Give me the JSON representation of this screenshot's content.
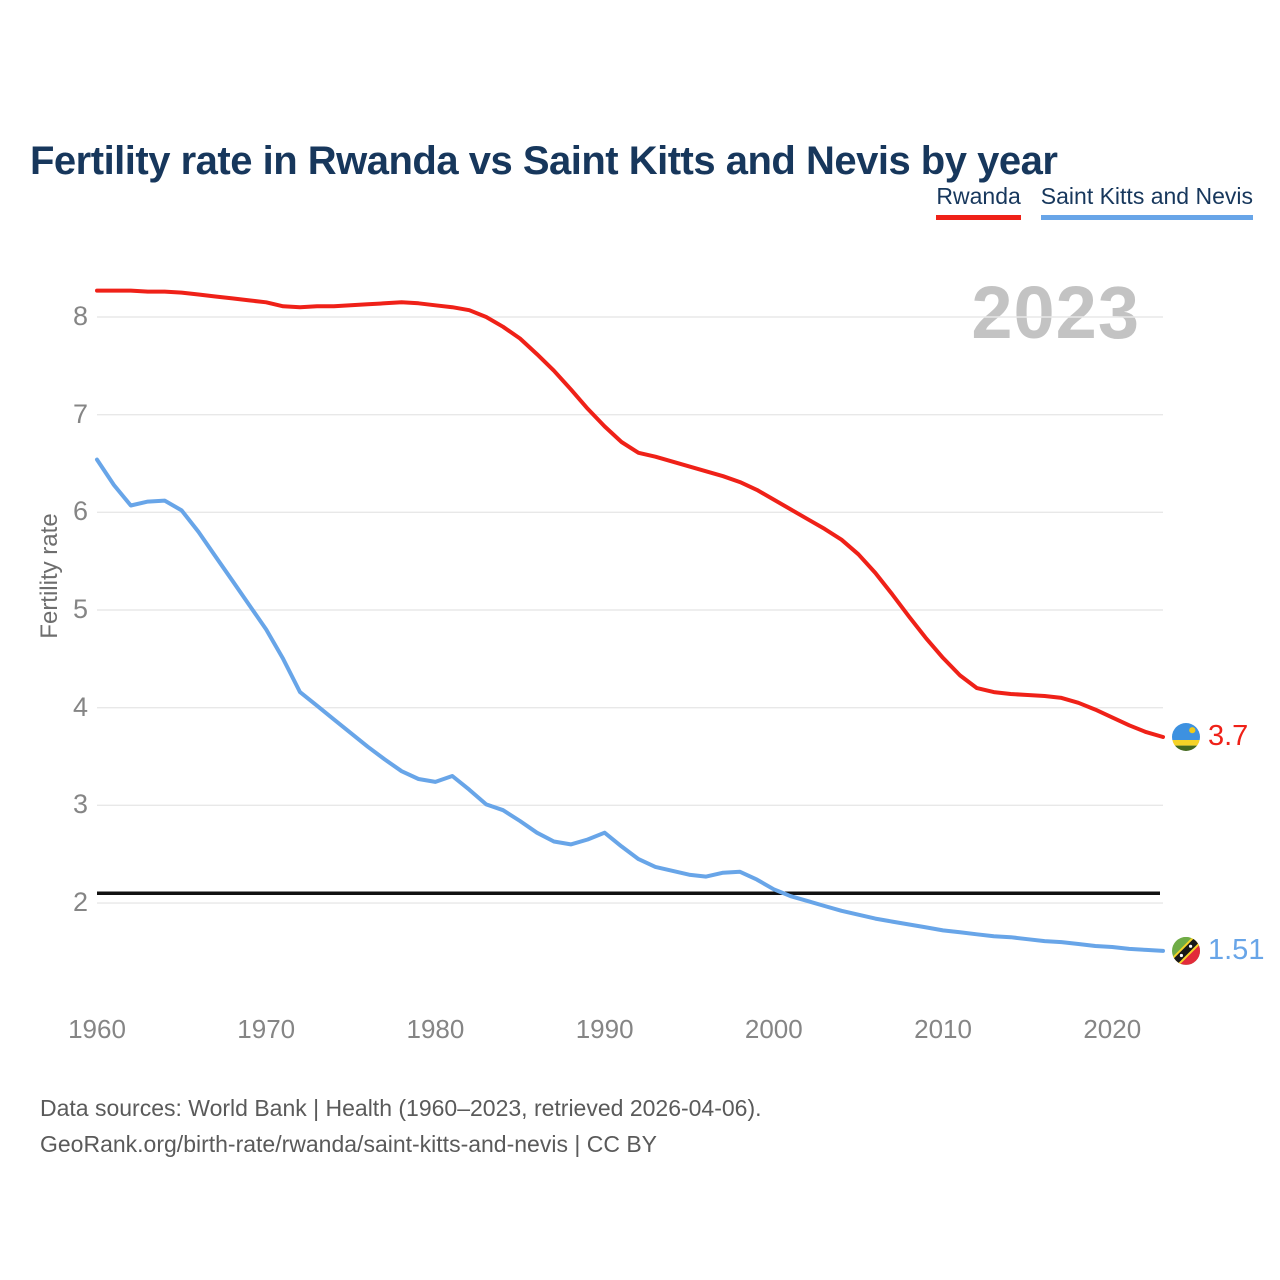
{
  "title": "Fertility rate in Rwanda vs Saint Kitts and Nevis by year",
  "legend": [
    {
      "label": "Rwanda",
      "color": "#ef2118"
    },
    {
      "label": "Saint Kitts and Nevis",
      "color": "#68a5e8"
    }
  ],
  "watermark": "2023",
  "y_axis": {
    "label": "Fertility rate",
    "ticks": [
      8,
      7,
      6,
      5,
      4,
      3,
      2
    ]
  },
  "x_axis": {
    "ticks": [
      1960,
      1970,
      1980,
      1990,
      2000,
      2010,
      2020
    ]
  },
  "end_labels": [
    {
      "series": "Rwanda",
      "value": "3.7",
      "flag": "rwanda-flag"
    },
    {
      "series": "Saint Kitts and Nevis",
      "value": "1.51",
      "flag": "saint-kitts-and-nevis-flag"
    }
  ],
  "footer": {
    "line1": "Data sources: World Bank | Health (1960–2023, retrieved 2026-04-06).",
    "line2": "GeoRank.org/birth-rate/rwanda/saint-kitts-and-nevis | CC BY"
  },
  "colors": {
    "title_text": "#17375c",
    "rwanda_red": "#ef2118",
    "skn_blue": "#68a5e8",
    "gridline": "#e8e8e8",
    "axis_text": "#858585",
    "watermark": "#c3c3c3",
    "footer_text": "#5a5a5a",
    "reference_line": "#111111",
    "background": "#ffffff"
  },
  "chart_data": {
    "type": "line",
    "title": "Fertility rate in Rwanda vs Saint Kitts and Nevis by year",
    "xlabel": "",
    "ylabel": "Fertility rate",
    "ylim": [
      1.0,
      8.5
    ],
    "xlim": [
      1960,
      2023
    ],
    "grid": "horizontal",
    "legend_position": "top-right",
    "annotations": {
      "replacement_level_line": 2.1,
      "watermark_year": "2023"
    },
    "x": [
      1960,
      1961,
      1962,
      1963,
      1964,
      1965,
      1966,
      1967,
      1968,
      1969,
      1970,
      1971,
      1972,
      1973,
      1974,
      1975,
      1976,
      1977,
      1978,
      1979,
      1980,
      1981,
      1982,
      1983,
      1984,
      1985,
      1986,
      1987,
      1988,
      1989,
      1990,
      1991,
      1992,
      1993,
      1994,
      1995,
      1996,
      1997,
      1998,
      1999,
      2000,
      2001,
      2002,
      2003,
      2004,
      2005,
      2006,
      2007,
      2008,
      2009,
      2010,
      2011,
      2012,
      2013,
      2014,
      2015,
      2016,
      2017,
      2018,
      2019,
      2020,
      2021,
      2022,
      2023
    ],
    "series": [
      {
        "name": "Rwanda",
        "color": "#ef2118",
        "final_value": 3.7,
        "values": [
          8.27,
          8.27,
          8.27,
          8.26,
          8.26,
          8.25,
          8.23,
          8.21,
          8.19,
          8.17,
          8.15,
          8.11,
          8.1,
          8.11,
          8.11,
          8.12,
          8.13,
          8.14,
          8.15,
          8.14,
          8.12,
          8.1,
          8.07,
          8.0,
          7.9,
          7.78,
          7.62,
          7.45,
          7.26,
          7.06,
          6.88,
          6.72,
          6.61,
          6.57,
          6.52,
          6.47,
          6.42,
          6.37,
          6.31,
          6.23,
          6.13,
          6.03,
          5.93,
          5.83,
          5.72,
          5.57,
          5.38,
          5.16,
          4.93,
          4.71,
          4.51,
          4.33,
          4.2,
          4.16,
          4.14,
          4.13,
          4.12,
          4.1,
          4.05,
          3.98,
          3.9,
          3.82,
          3.75,
          3.7
        ]
      },
      {
        "name": "Saint Kitts and Nevis",
        "color": "#68a5e8",
        "final_value": 1.51,
        "values": [
          6.54,
          6.28,
          6.07,
          6.11,
          6.12,
          6.02,
          5.8,
          5.55,
          5.3,
          5.05,
          4.8,
          4.5,
          4.16,
          4.02,
          3.88,
          3.74,
          3.6,
          3.47,
          3.35,
          3.27,
          3.24,
          3.3,
          3.16,
          3.01,
          2.95,
          2.84,
          2.72,
          2.63,
          2.6,
          2.65,
          2.72,
          2.58,
          2.45,
          2.37,
          2.33,
          2.29,
          2.27,
          2.31,
          2.32,
          2.24,
          2.14,
          2.07,
          2.02,
          1.97,
          1.92,
          1.88,
          1.84,
          1.81,
          1.78,
          1.75,
          1.72,
          1.7,
          1.68,
          1.66,
          1.65,
          1.63,
          1.61,
          1.6,
          1.58,
          1.56,
          1.55,
          1.53,
          1.52,
          1.51
        ]
      }
    ]
  }
}
